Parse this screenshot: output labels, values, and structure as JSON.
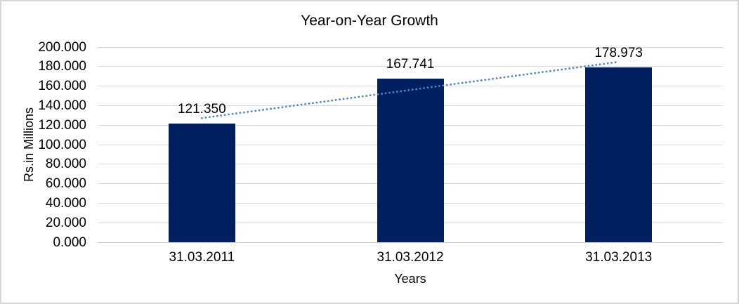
{
  "chart_data": {
    "type": "bar",
    "title": "Year-on-Year Growth",
    "xlabel": "Years",
    "ylabel": "Rs.in Millions",
    "categories": [
      "31.03.2011",
      "31.03.2012",
      "31.03.2013"
    ],
    "values": [
      121.35,
      167.741,
      178.973
    ],
    "data_labels": [
      "121.350",
      "167.741",
      "178.973"
    ],
    "ylim": [
      0,
      200
    ],
    "ytick_step": 20,
    "ytick_labels": [
      "0.000",
      "20.000",
      "40.000",
      "60.000",
      "80.000",
      "100.000",
      "120.000",
      "140.000",
      "160.000",
      "180.000",
      "200.000"
    ],
    "grid": true,
    "legend": "none",
    "bar_color": "#002060",
    "trendline": {
      "style": "dotted",
      "fit": "linear",
      "color": "#4a86c8"
    },
    "gridline_color": "#d9d9d9",
    "axis_line_color": "#cfcfcf",
    "text_color": "#000000"
  }
}
